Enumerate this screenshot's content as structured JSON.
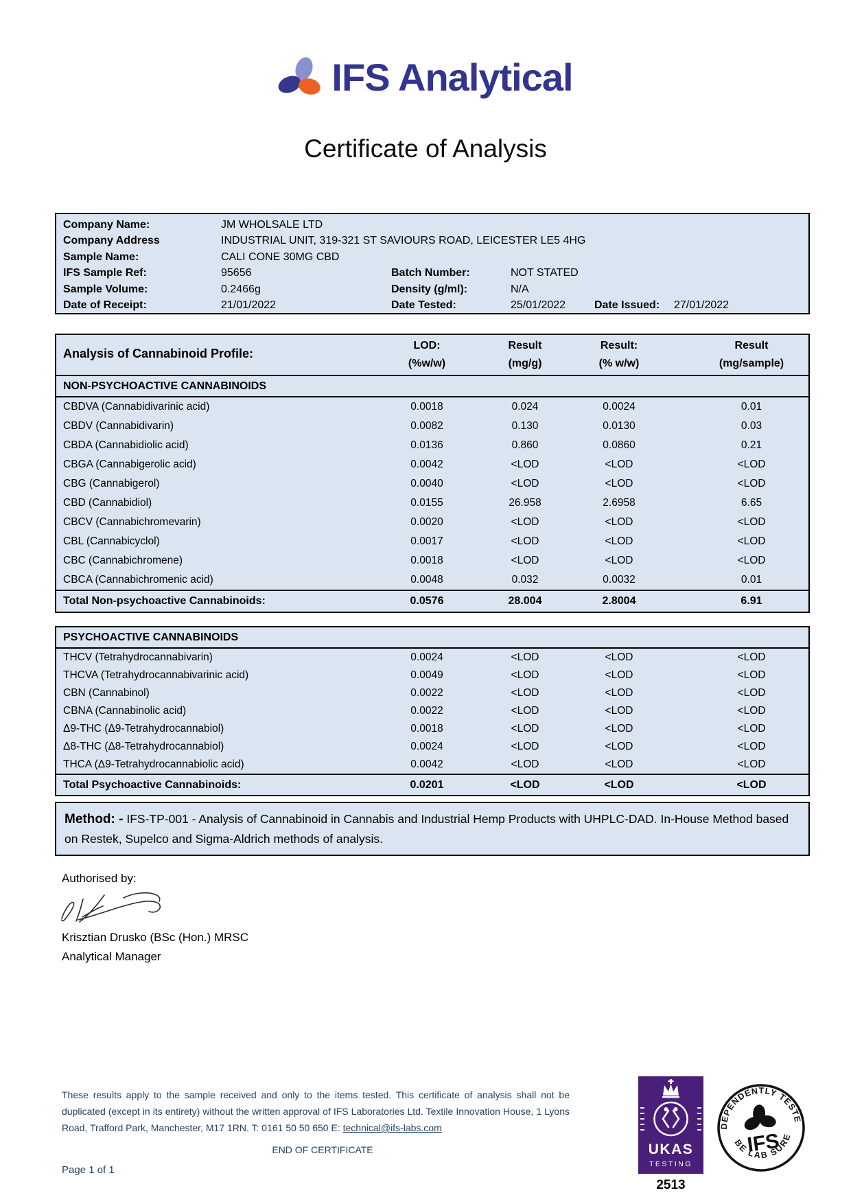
{
  "page": {
    "brand": "IFS Analytical",
    "title": "Certificate of Analysis",
    "end_note": "END OF CERTIFICATE",
    "page_number": "Page 1 of 1"
  },
  "colors": {
    "brand_navy": "#33348e",
    "logo_orange": "#e96224",
    "logo_lilac": "#8a8fd0",
    "logo_dark_blue": "#35378f",
    "table_blue": "#dbe5f1",
    "footer_navy": "#24425f",
    "ukas_purple": "#4a1f7a"
  },
  "sample_info": {
    "rows": [
      {
        "label": "Company Name:",
        "value": "JM WHOLSALE LTD"
      },
      {
        "label": "Company Address",
        "value": "INDUSTRIAL UNIT, 319-321 ST SAVIOURS ROAD, LEICESTER LE5 4HG"
      },
      {
        "label": "Sample Name:",
        "value": "CALI CONE 30MG CBD"
      },
      {
        "label": "IFS Sample Ref:",
        "value": "95656",
        "label2": "Batch Number:",
        "value2": "NOT STATED"
      },
      {
        "label": "Sample Volume:",
        "value": "0.2466g",
        "label2": "Density (g/ml):",
        "value2": "N/A"
      },
      {
        "label": "Date of Receipt:",
        "value": "21/01/2022",
        "label2": "Date Tested:",
        "value2": "25/01/2022",
        "label3": "Date Issued:",
        "value3": "27/01/2022"
      }
    ]
  },
  "analysis_table": {
    "title": "Analysis of Cannabinoid Profile:",
    "columns": [
      {
        "line1": "LOD:",
        "line2": "(%w/w)"
      },
      {
        "line1": "Result",
        "line2": "(mg/g)"
      },
      {
        "line1": "Result:",
        "line2": "(% w/w)"
      },
      {
        "line1": "Result",
        "line2": "(mg/sample)"
      }
    ]
  },
  "non_psychoactive": {
    "section_title": "NON-PSYCHOACTIVE CANNABINOIDS",
    "rows": [
      {
        "name": "CBDVA (Cannabidivarinic acid)",
        "lod": "0.0018",
        "mg_g": "0.024",
        "pct_ww": "0.0024",
        "mg_sample": "0.01"
      },
      {
        "name": "CBDV (Cannabidivarin)",
        "lod": "0.0082",
        "mg_g": "0.130",
        "pct_ww": "0.0130",
        "mg_sample": "0.03"
      },
      {
        "name": "CBDA (Cannabidiolic acid)",
        "lod": "0.0136",
        "mg_g": "0.860",
        "pct_ww": "0.0860",
        "mg_sample": "0.21"
      },
      {
        "name": "CBGA (Cannabigerolic acid)",
        "lod": "0.0042",
        "mg_g": "<LOD",
        "pct_ww": "<LOD",
        "mg_sample": "<LOD"
      },
      {
        "name": "CBG (Cannabigerol)",
        "lod": "0.0040",
        "mg_g": "<LOD",
        "pct_ww": "<LOD",
        "mg_sample": "<LOD"
      },
      {
        "name": "CBD (Cannabidiol)",
        "lod": "0.0155",
        "mg_g": "26.958",
        "pct_ww": "2.6958",
        "mg_sample": "6.65"
      },
      {
        "name": "CBCV (Cannabichromevarin)",
        "lod": "0.0020",
        "mg_g": "<LOD",
        "pct_ww": "<LOD",
        "mg_sample": "<LOD"
      },
      {
        "name": "CBL (Cannabicyclol)",
        "lod": "0.0017",
        "mg_g": "<LOD",
        "pct_ww": "<LOD",
        "mg_sample": "<LOD"
      },
      {
        "name": "CBC (Cannabichromene)",
        "lod": "0.0018",
        "mg_g": "<LOD",
        "pct_ww": "<LOD",
        "mg_sample": "<LOD"
      },
      {
        "name": "CBCA (Cannabichromenic acid)",
        "lod": "0.0048",
        "mg_g": "0.032",
        "pct_ww": "0.0032",
        "mg_sample": "0.01"
      }
    ],
    "total": {
      "name": "Total Non-psychoactive Cannabinoids:",
      "lod": "0.0576",
      "mg_g": "28.004",
      "pct_ww": "2.8004",
      "mg_sample": "6.91"
    }
  },
  "psychoactive": {
    "section_title": "PSYCHOACTIVE CANNABINOIDS",
    "rows": [
      {
        "name": "THCV (Tetrahydrocannabivarin)",
        "lod": "0.0024",
        "mg_g": "<LOD",
        "pct_ww": "<LOD",
        "mg_sample": "<LOD"
      },
      {
        "name": "THCVA (Tetrahydrocannabivarinic acid)",
        "lod": "0.0049",
        "mg_g": "<LOD",
        "pct_ww": "<LOD",
        "mg_sample": "<LOD"
      },
      {
        "name": "CBN (Cannabinol)",
        "lod": "0.0022",
        "mg_g": "<LOD",
        "pct_ww": "<LOD",
        "mg_sample": "<LOD"
      },
      {
        "name": "CBNA (Cannabinolic acid)",
        "lod": "0.0022",
        "mg_g": "<LOD",
        "pct_ww": "<LOD",
        "mg_sample": "<LOD"
      },
      {
        "name": "Δ9-THC (Δ9-Tetrahydrocannabiol)",
        "lod": "0.0018",
        "mg_g": "<LOD",
        "pct_ww": "<LOD",
        "mg_sample": "<LOD"
      },
      {
        "name": "Δ8-THC (Δ8-Tetrahydrocannabiol)",
        "lod": "0.0024",
        "mg_g": "<LOD",
        "pct_ww": "<LOD",
        "mg_sample": "<LOD"
      },
      {
        "name": "THCA (Δ9-Tetrahydrocannabiolic acid)",
        "lod": "0.0042",
        "mg_g": "<LOD",
        "pct_ww": "<LOD",
        "mg_sample": "<LOD"
      }
    ],
    "total": {
      "name": "Total Psychoactive Cannabinoids:",
      "lod": "0.0201",
      "mg_g": "<LOD",
      "pct_ww": "<LOD",
      "mg_sample": "<LOD"
    }
  },
  "method": {
    "label": "Method: -",
    "text": "IFS-TP-001 - Analysis of Cannabinoid in Cannabis and Industrial Hemp Products with UHPLC-DAD. In-House Method based on Restek, Supelco and Sigma-Aldrich methods of analysis."
  },
  "signature": {
    "heading": "Authorised by:",
    "name": "Krisztian Drusko (BSc (Hon.) MRSC",
    "role": "Analytical Manager"
  },
  "footer": {
    "disclaimer_prefix": "These results apply to the sample received and only to the items tested. This certificate of analysis shall not be duplicated (except in its entirety) without the written approval of IFS Laboratories Ltd. Textile Innovation House, 1 Lyons Road, Trafford Park, Manchester, M17 1RN. T: 0161 50 50 650 E: ",
    "email": "technical@ifs-labs.com",
    "ukas": {
      "name": "UKAS",
      "sub": "TESTING",
      "number": "2513"
    },
    "stamp": {
      "arc_top": "INDEPENDENTLY TESTED",
      "center": "IFS",
      "arc_bottom": "BE LAB SURE"
    }
  }
}
